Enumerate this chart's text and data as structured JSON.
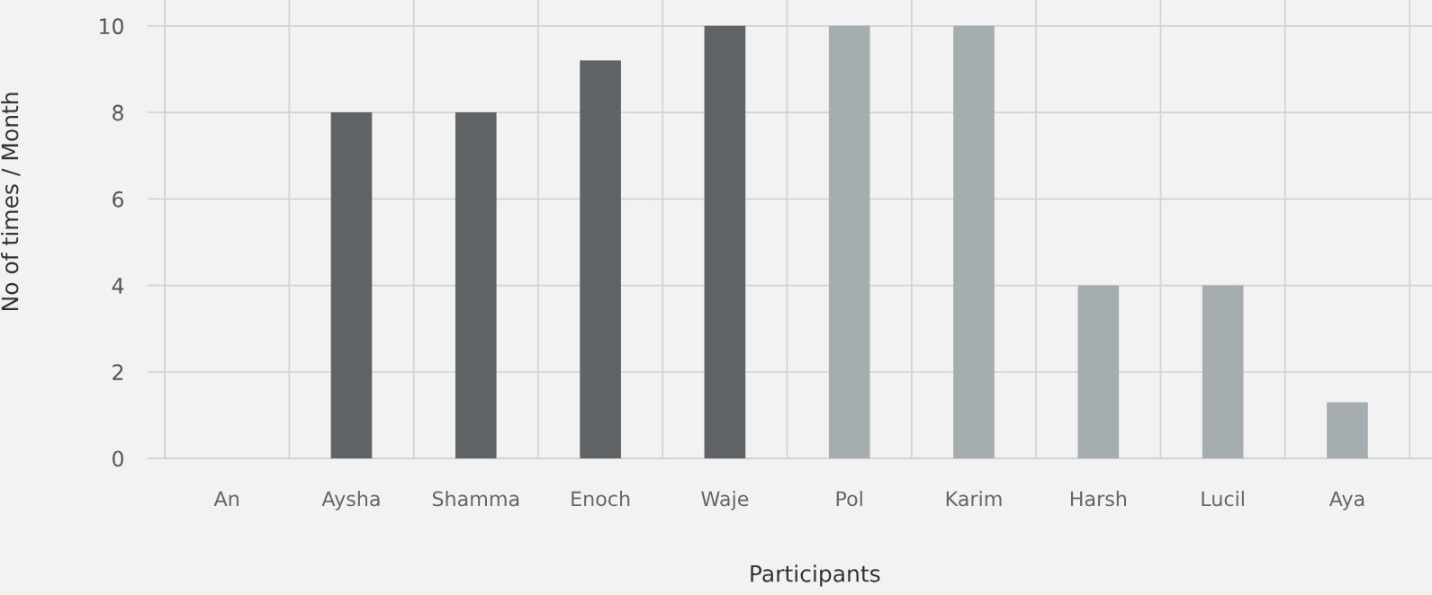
{
  "chart_data": {
    "type": "bar",
    "xlabel": "Participants",
    "ylabel": "No of times / Month",
    "categories": [
      "An",
      "Aysha",
      "Shamma",
      "Enoch",
      "Waje",
      "Pol",
      "Karim",
      "Harsh",
      "Lucil",
      "Aya"
    ],
    "values": [
      0,
      8,
      8,
      9.2,
      10,
      10,
      10,
      4,
      4,
      1.3
    ],
    "colors": [
      "#5f6366",
      "#5f6366",
      "#5f6366",
      "#5f6366",
      "#5f6366",
      "#a6adb1",
      "#a6adb1",
      "#a6adb1",
      "#a6adb1",
      "#a6adb1"
    ],
    "ylim": [
      0,
      10.6
    ],
    "yticks": [
      0,
      2,
      4,
      6,
      8,
      10
    ],
    "grid": true
  }
}
